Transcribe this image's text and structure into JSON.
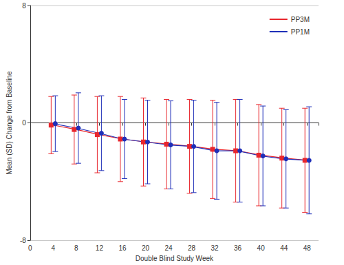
{
  "chart_data": {
    "type": "line",
    "x_label": "Double Blind Study Week",
    "y_label": "Mean (SD) Change from Baseline",
    "x": [
      4,
      8,
      12,
      16,
      20,
      24,
      28,
      32,
      36,
      40,
      44,
      48
    ],
    "xlim": [
      0,
      50
    ],
    "xticks": [
      0,
      4,
      8,
      12,
      16,
      20,
      24,
      28,
      32,
      36,
      40,
      44,
      48
    ],
    "ylim": [
      -8,
      8
    ],
    "yticks": [
      -8,
      0,
      8
    ],
    "grid": true,
    "legend": "top-right",
    "series": [
      {
        "name": "PP3M",
        "color": "#e8262d",
        "marker": "square",
        "values": [
          -0.15,
          -0.45,
          -0.8,
          -1.1,
          -1.3,
          -1.45,
          -1.6,
          -1.8,
          -1.9,
          -2.2,
          -2.4,
          -2.55
        ],
        "sd": [
          1.95,
          2.35,
          2.6,
          2.9,
          3.0,
          3.05,
          3.2,
          3.35,
          3.5,
          3.45,
          3.4,
          3.55
        ]
      },
      {
        "name": "PP1M",
        "color": "#1f2fb8",
        "marker": "circle",
        "values": [
          -0.05,
          -0.35,
          -0.7,
          -1.1,
          -1.3,
          -1.5,
          -1.6,
          -1.9,
          -1.9,
          -2.25,
          -2.45,
          -2.55
        ],
        "sd": [
          1.9,
          2.4,
          2.55,
          2.7,
          2.85,
          3.0,
          3.15,
          3.3,
          3.5,
          3.4,
          3.35,
          3.65
        ]
      }
    ]
  }
}
